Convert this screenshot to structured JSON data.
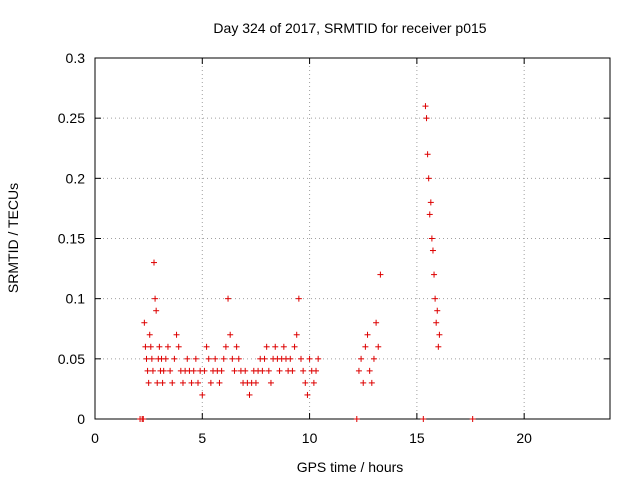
{
  "chart_data": {
    "type": "scatter",
    "title": "Day 324 of 2017, SRMTID for receiver p015",
    "xlabel": "GPS time / hours",
    "ylabel": "SRMTID / TECUs",
    "xlim": [
      0,
      24
    ],
    "ylim": [
      0,
      0.3
    ],
    "xticks": [
      0,
      5,
      10,
      15,
      20
    ],
    "xtick_labels": [
      "0",
      "5",
      "10",
      "15",
      "20"
    ],
    "yticks": [
      0,
      0.05,
      0.1,
      0.15,
      0.2,
      0.25,
      0.3
    ],
    "ytick_labels": [
      "0",
      "0.05",
      "0.1",
      "0.15",
      "0.2",
      "0.25",
      "0.3"
    ],
    "grid": true,
    "marker": "plus",
    "color": "#dd0000",
    "series": [
      {
        "name": "SRMTID",
        "x": [
          2.1,
          2.2,
          2.25,
          2.3,
          2.35,
          2.4,
          2.45,
          2.5,
          2.55,
          2.6,
          2.65,
          2.7,
          2.75,
          2.8,
          2.85,
          2.9,
          2.95,
          3.0,
          3.05,
          3.1,
          3.15,
          3.2,
          3.3,
          3.4,
          3.5,
          3.6,
          3.7,
          3.8,
          3.9,
          4.0,
          4.1,
          4.2,
          4.3,
          4.4,
          4.5,
          4.6,
          4.7,
          4.8,
          4.9,
          5.0,
          5.1,
          5.2,
          5.3,
          5.4,
          5.5,
          5.6,
          5.7,
          5.8,
          5.9,
          6.0,
          6.1,
          6.2,
          6.3,
          6.4,
          6.5,
          6.6,
          6.7,
          6.8,
          6.9,
          7.0,
          7.1,
          7.2,
          7.3,
          7.4,
          7.5,
          7.6,
          7.7,
          7.8,
          7.9,
          8.0,
          8.1,
          8.2,
          8.3,
          8.4,
          8.5,
          8.6,
          8.7,
          8.8,
          8.9,
          9.0,
          9.1,
          9.2,
          9.3,
          9.4,
          9.5,
          9.6,
          9.7,
          9.8,
          9.9,
          10.0,
          10.1,
          10.2,
          10.3,
          10.4,
          12.2,
          12.3,
          12.4,
          12.5,
          12.6,
          12.7,
          12.8,
          12.9,
          13.0,
          13.1,
          13.2,
          13.3,
          15.3,
          15.4,
          15.45,
          15.5,
          15.55,
          15.6,
          15.65,
          15.7,
          15.75,
          15.8,
          15.85,
          15.9,
          15.95,
          16.0,
          16.05,
          17.6
        ],
        "y": [
          0.0,
          0.0,
          0.0,
          0.08,
          0.06,
          0.05,
          0.04,
          0.03,
          0.07,
          0.06,
          0.05,
          0.04,
          0.13,
          0.1,
          0.09,
          0.03,
          0.05,
          0.06,
          0.04,
          0.05,
          0.03,
          0.04,
          0.05,
          0.06,
          0.04,
          0.03,
          0.05,
          0.07,
          0.06,
          0.04,
          0.03,
          0.04,
          0.05,
          0.04,
          0.03,
          0.04,
          0.05,
          0.03,
          0.04,
          0.02,
          0.04,
          0.06,
          0.05,
          0.03,
          0.04,
          0.05,
          0.04,
          0.03,
          0.04,
          0.05,
          0.06,
          0.1,
          0.07,
          0.05,
          0.04,
          0.06,
          0.05,
          0.04,
          0.03,
          0.04,
          0.03,
          0.02,
          0.03,
          0.04,
          0.03,
          0.04,
          0.05,
          0.04,
          0.05,
          0.06,
          0.04,
          0.03,
          0.05,
          0.06,
          0.05,
          0.04,
          0.05,
          0.06,
          0.05,
          0.04,
          0.05,
          0.04,
          0.06,
          0.07,
          0.1,
          0.05,
          0.04,
          0.03,
          0.02,
          0.05,
          0.04,
          0.03,
          0.04,
          0.05,
          0.0,
          0.04,
          0.05,
          0.03,
          0.06,
          0.07,
          0.04,
          0.03,
          0.05,
          0.08,
          0.06,
          0.12,
          0.0,
          0.26,
          0.25,
          0.22,
          0.2,
          0.17,
          0.18,
          0.15,
          0.14,
          0.12,
          0.1,
          0.08,
          0.09,
          0.06,
          0.07,
          0.0
        ]
      }
    ]
  }
}
